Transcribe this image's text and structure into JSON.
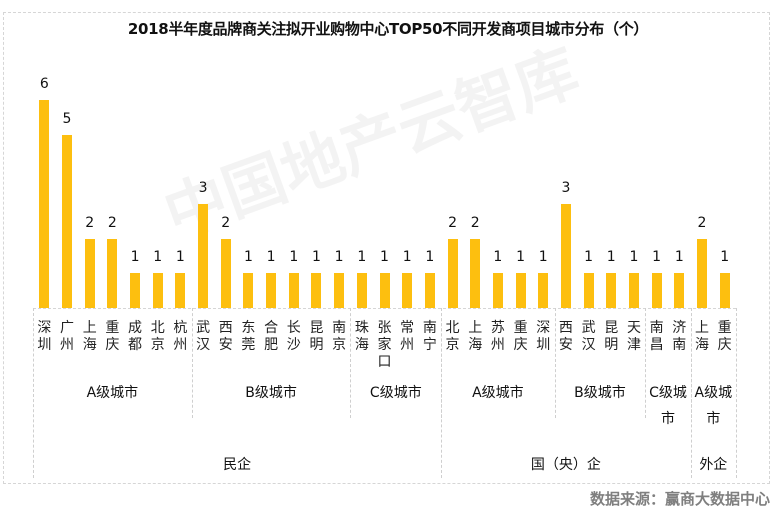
{
  "title": "2018半年度品牌商关注拟开业购物中心TOP50不同开发商项目城市分布（个）",
  "watermark": "中国地产云智库",
  "source": "数据来源：赢商大数据中心",
  "colors": {
    "bar": "#fdbf0f",
    "text": "#111111",
    "source": "#7f7f7f",
    "divider": "#cfcfcf"
  },
  "chart_data": {
    "type": "bar",
    "title": "2018半年度品牌商关注拟开业购物中心TOP50不同开发商项目城市分布（个）",
    "xlabel": "",
    "ylabel": "",
    "ylim": [
      0,
      6
    ],
    "grid": false,
    "legend": null,
    "categories": [
      "深圳",
      "广州",
      "上海",
      "重庆",
      "成都",
      "北京",
      "杭州",
      "武汉",
      "西安",
      "东莞",
      "合肥",
      "长沙",
      "昆明",
      "南京",
      "珠海",
      "张家口",
      "常州",
      "南宁",
      "北京",
      "上海",
      "苏州",
      "重庆",
      "深圳",
      "西安",
      "武汉",
      "昆明",
      "天津",
      "南昌",
      "济南",
      "上海",
      "重庆"
    ],
    "values": [
      6,
      5,
      2,
      2,
      1,
      1,
      1,
      3,
      2,
      1,
      1,
      1,
      1,
      1,
      1,
      1,
      1,
      1,
      2,
      2,
      1,
      1,
      1,
      3,
      1,
      1,
      1,
      1,
      1,
      2,
      1
    ],
    "city_tier_groups": [
      {
        "label": "A级城市",
        "start": 0,
        "count": 7
      },
      {
        "label": "B级城市",
        "start": 7,
        "count": 7
      },
      {
        "label": "C级城市",
        "start": 14,
        "count": 4
      },
      {
        "label": "A级城市",
        "start": 18,
        "count": 5
      },
      {
        "label": "B级城市",
        "start": 23,
        "count": 4
      },
      {
        "label": "C级城市",
        "start": 27,
        "count": 2
      },
      {
        "label": "A级城市",
        "start": 29,
        "count": 2
      }
    ],
    "developer_groups": [
      {
        "label": "民企",
        "start": 0,
        "count": 18
      },
      {
        "label": "国（央）企",
        "start": 18,
        "count": 11
      },
      {
        "label": "外企",
        "start": 29,
        "count": 2
      }
    ]
  }
}
